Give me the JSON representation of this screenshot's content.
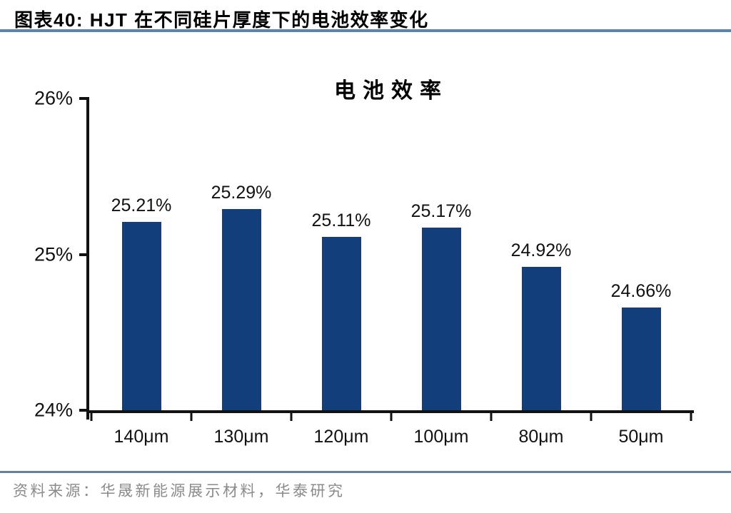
{
  "figure": {
    "caption": "图表40:  HJT 在不同硅片厚度下的电池效率变化",
    "source": "资料来源：华晟新能源展示材料，华泰研究"
  },
  "chart_data": {
    "type": "bar",
    "title": "电池效率",
    "categories": [
      "140μm",
      "130μm",
      "120μm",
      "100μm",
      "80μm",
      "50μm"
    ],
    "values": [
      25.21,
      25.29,
      25.11,
      25.17,
      24.92,
      24.66
    ],
    "value_labels": [
      "25.21%",
      "25.29%",
      "25.11%",
      "25.17%",
      "24.92%",
      "24.66%"
    ],
    "xlabel": "",
    "ylabel": "",
    "ylim": [
      24,
      26
    ],
    "yticks": [
      26,
      25,
      24
    ],
    "ytick_labels": [
      "26%",
      "25%",
      "24%"
    ],
    "grid": false,
    "legend": false,
    "bar_color": "#123E7C"
  },
  "colors": {
    "bar": "#123E7C",
    "header_rule": "#5B84AD",
    "footer_rule": "#64819F",
    "source_text": "#8A8A8A",
    "axis": "#111111"
  }
}
